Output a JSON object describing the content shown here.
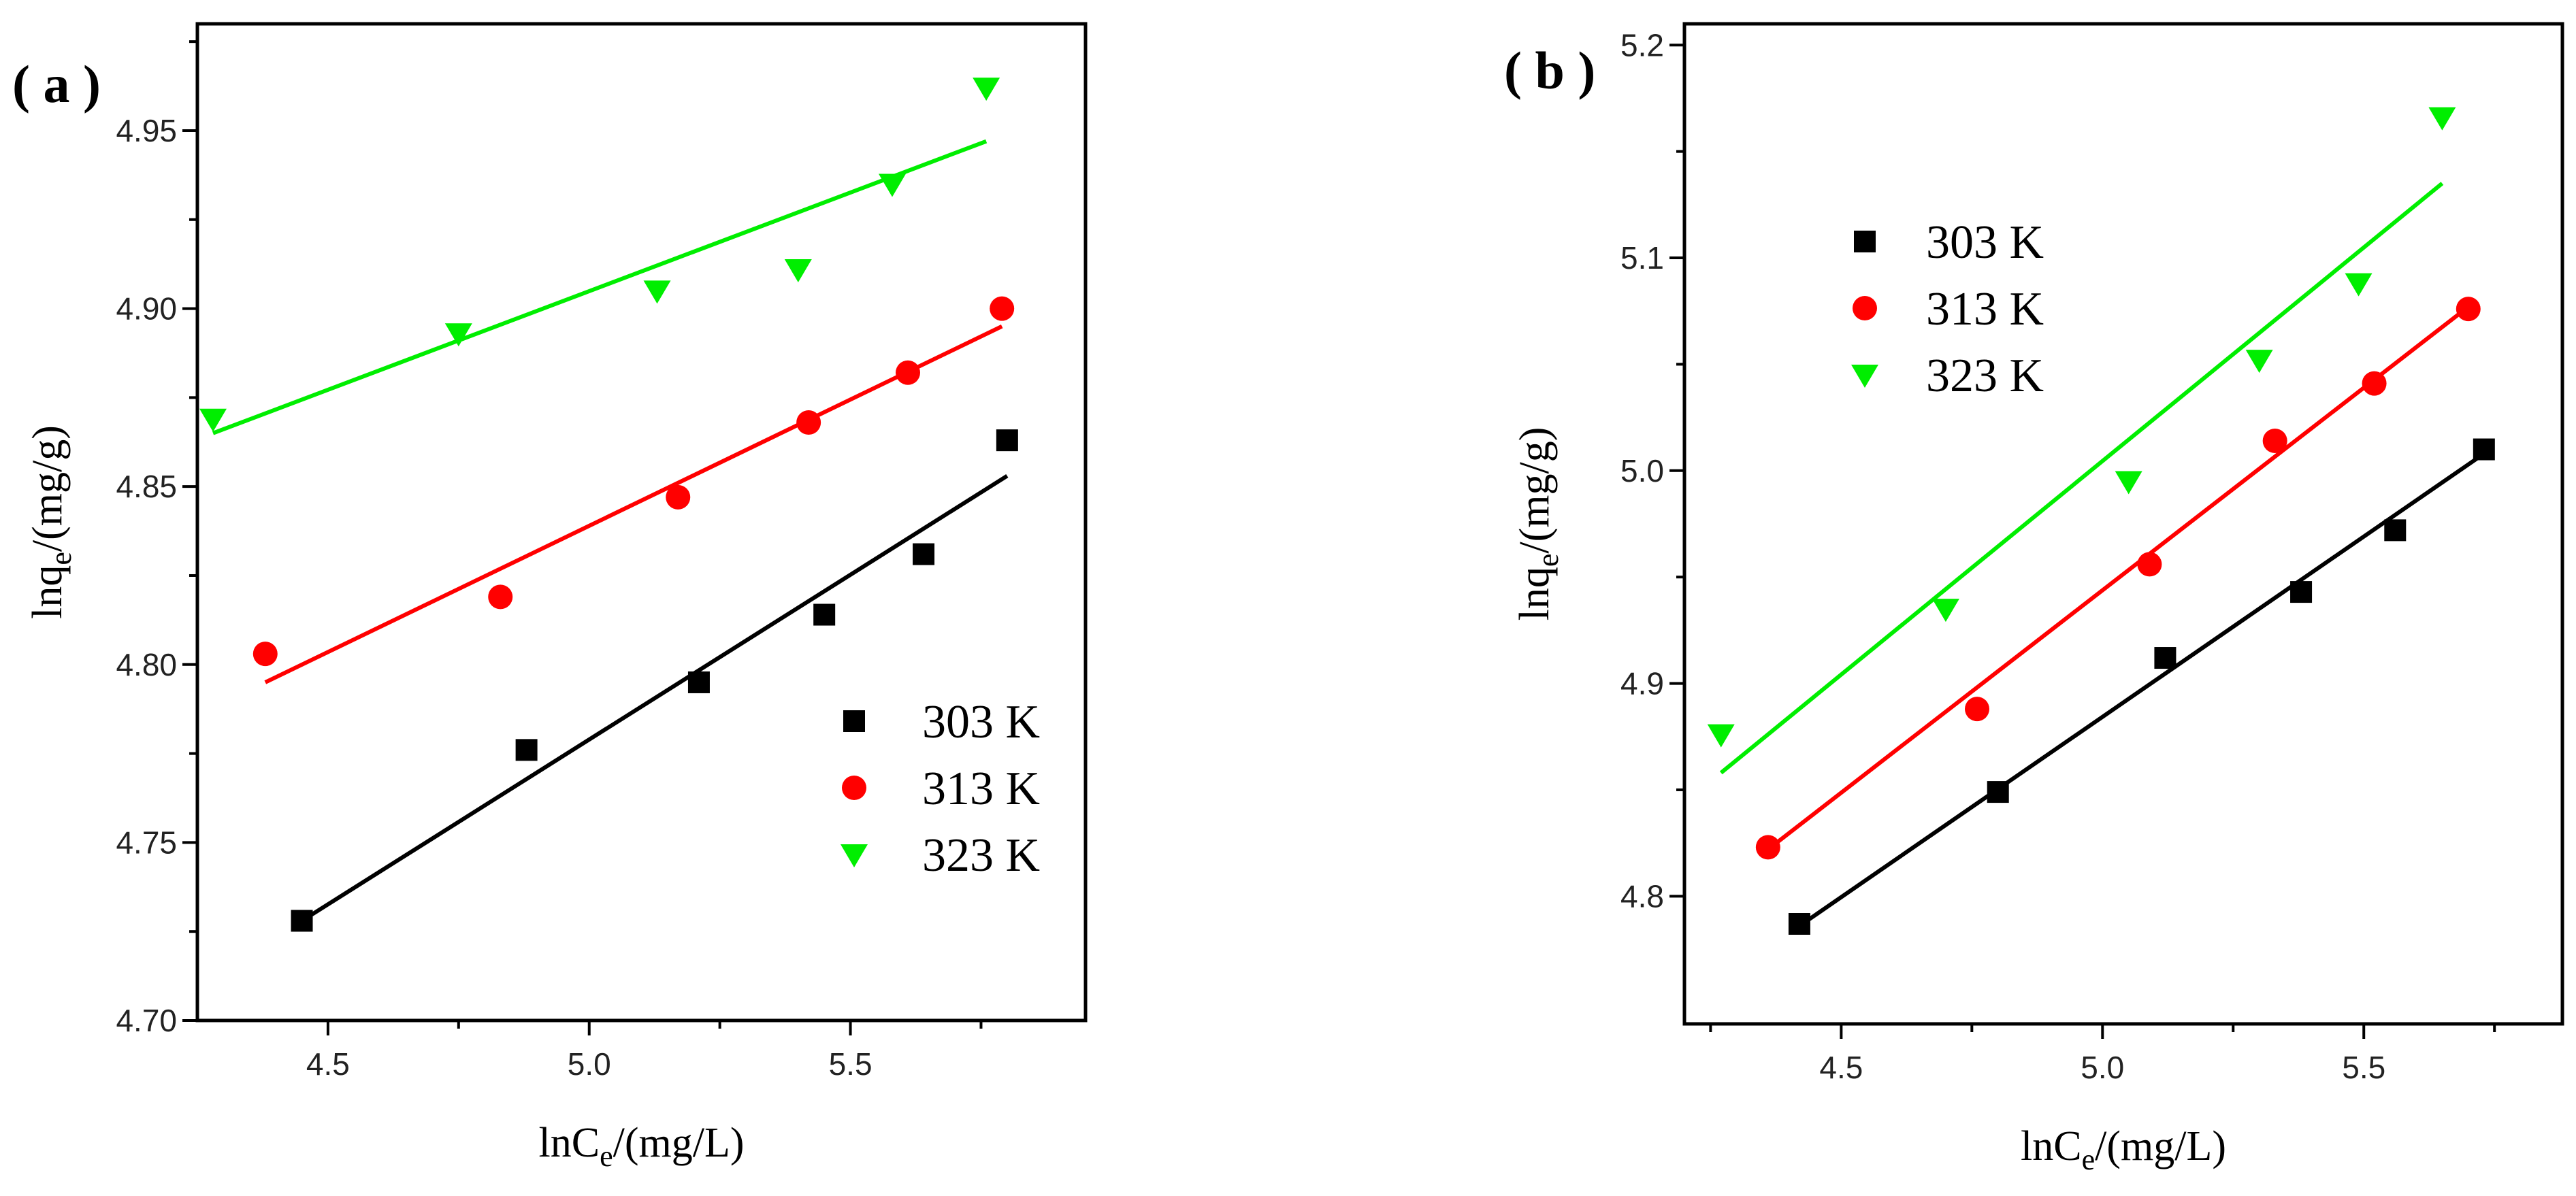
{
  "chart_data": [
    {
      "type": "scatter",
      "panel_label": "( a )",
      "xlabel": "lnCe/(mg/L)",
      "ylabel": "lnqe/(mg/g)",
      "xlim": [
        4.25,
        5.95
      ],
      "ylim": [
        4.7,
        4.98
      ],
      "xticks": [
        4.5,
        5.0,
        5.5
      ],
      "xtick_labels": [
        "4.5",
        "5.0",
        "5.5"
      ],
      "yticks": [
        4.7,
        4.75,
        4.8,
        4.85,
        4.9,
        4.95
      ],
      "ytick_labels": [
        "4.70",
        "4.75",
        "4.80",
        "4.85",
        "4.90",
        "4.95"
      ],
      "legend_position": "lower-right",
      "series": [
        {
          "name": "303 K",
          "marker": "square",
          "color": "#000000",
          "x": [
            4.45,
            4.88,
            5.21,
            5.45,
            5.64,
            5.8
          ],
          "y": [
            4.728,
            4.776,
            4.795,
            4.814,
            4.831,
            4.863
          ],
          "fit": {
            "x": [
              4.45,
              5.8
            ],
            "y": [
              4.728,
              4.853
            ]
          }
        },
        {
          "name": "313 K",
          "marker": "circle",
          "color": "#ff0000",
          "x": [
            4.38,
            4.83,
            5.17,
            5.42,
            5.61,
            5.79
          ],
          "y": [
            4.803,
            4.819,
            4.847,
            4.868,
            4.882,
            4.9
          ],
          "fit": {
            "x": [
              4.38,
              5.79
            ],
            "y": [
              4.795,
              4.895
            ]
          }
        },
        {
          "name": "323 K",
          "marker": "triangle-down",
          "color": "#00ee00",
          "x": [
            4.28,
            4.75,
            5.13,
            5.4,
            5.58,
            5.76
          ],
          "y": [
            4.869,
            4.893,
            4.905,
            4.911,
            4.935,
            4.962
          ],
          "fit": {
            "x": [
              4.28,
              5.76
            ],
            "y": [
              4.865,
              4.947
            ]
          }
        }
      ]
    },
    {
      "type": "scatter",
      "panel_label": "( b )",
      "xlabel": "lnCe/(mg/L)",
      "ylabel": "lnqe/(mg/g)",
      "xlim": [
        4.2,
        5.88
      ],
      "ylim": [
        4.74,
        5.21
      ],
      "xticks": [
        4.5,
        5.0,
        5.5
      ],
      "xtick_labels": [
        "4.5",
        "5.0",
        "5.5"
      ],
      "yticks": [
        4.8,
        4.9,
        5.0,
        5.1,
        5.2
      ],
      "ytick_labels": [
        "4.8",
        "4.9",
        "5.0",
        "5.1",
        "5.2"
      ],
      "legend_position": "top-left",
      "series": [
        {
          "name": "303 K",
          "marker": "square",
          "color": "#000000",
          "x": [
            4.42,
            4.8,
            5.12,
            5.38,
            5.56,
            5.73
          ],
          "y": [
            4.787,
            4.849,
            4.912,
            4.943,
            4.972,
            5.01
          ],
          "fit": {
            "x": [
              4.42,
              5.73
            ],
            "y": [
              4.786,
              5.008
            ]
          }
        },
        {
          "name": "313 K",
          "marker": "circle",
          "color": "#ff0000",
          "x": [
            4.36,
            4.76,
            5.09,
            5.33,
            5.52,
            5.7
          ],
          "y": [
            4.823,
            4.888,
            4.956,
            5.014,
            5.041,
            5.076
          ],
          "fit": {
            "x": [
              4.36,
              5.7
            ],
            "y": [
              4.822,
              5.077
            ]
          }
        },
        {
          "name": "323 K",
          "marker": "triangle-down",
          "color": "#00ee00",
          "x": [
            4.27,
            4.7,
            5.05,
            5.3,
            5.49,
            5.65
          ],
          "y": [
            4.876,
            4.935,
            4.995,
            5.052,
            5.088,
            5.166
          ],
          "fit": {
            "x": [
              4.27,
              5.65
            ],
            "y": [
              4.858,
              5.135
            ]
          }
        }
      ]
    }
  ]
}
